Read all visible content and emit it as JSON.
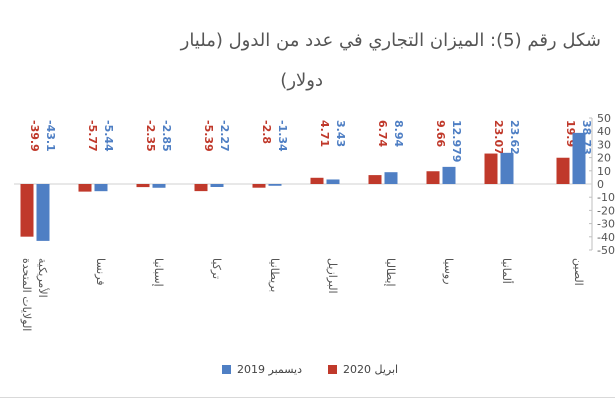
{
  "chart_data": {
    "type": "bar",
    "title_line1": "شكل رقم (5): الميزان التجاري في عدد من الدول (مليار",
    "title_line2": "دولار)",
    "categories": [
      "الصين",
      "ألمانيا",
      "روسيا",
      "إيطاليا",
      "البرازيل",
      "بريطانيا",
      "تركيا",
      "إسبانيا",
      "فرنسا",
      "الولايات المتحدة الأمريكية"
    ],
    "series": [
      {
        "name": "ابريل 2020",
        "color": "#c0392b",
        "values": [
          19.9,
          23.07,
          9.66,
          6.74,
          4.71,
          -2.8,
          -5.39,
          -2.35,
          -5.77,
          -39.9
        ],
        "labels": [
          "19.9",
          "23.07",
          "9.66",
          "6.74",
          "4.71",
          "-2.8",
          "-5.39",
          "-2.35",
          "-5.77",
          "-39.9"
        ]
      },
      {
        "name": "ديسمبر 2019",
        "color": "#4f7fc4",
        "values": [
          38.73,
          23.62,
          12.979,
          8.94,
          3.43,
          -1.34,
          -2.27,
          -2.85,
          -5.44,
          -43.1
        ],
        "labels": [
          "38.73",
          "23.62",
          "12.979",
          "8.94",
          "3.43",
          "-1.34",
          "-2.27",
          "-2.85",
          "-5.44",
          "-43.1"
        ]
      }
    ],
    "category_labels": [
      [
        "الصين"
      ],
      [
        "ألمانيا"
      ],
      [
        "روسيا"
      ],
      [
        "إيطاليا"
      ],
      [
        "البرازيل"
      ],
      [
        "بريطانيا"
      ],
      [
        "تركيا"
      ],
      [
        "إسبانيا"
      ],
      [
        "فرنسا"
      ],
      [
        "الولايات المتحدة",
        "الأمريكية"
      ]
    ],
    "yaxis": {
      "min": -50,
      "max": 50,
      "step": 10,
      "ticks": [
        "50",
        "40",
        "30",
        "20",
        "10",
        "0",
        "-10",
        "-20",
        "-30",
        "-40",
        "-50"
      ]
    },
    "legend": {
      "items": [
        "ابريل 2020",
        "ديسمبر 2019"
      ]
    }
  }
}
